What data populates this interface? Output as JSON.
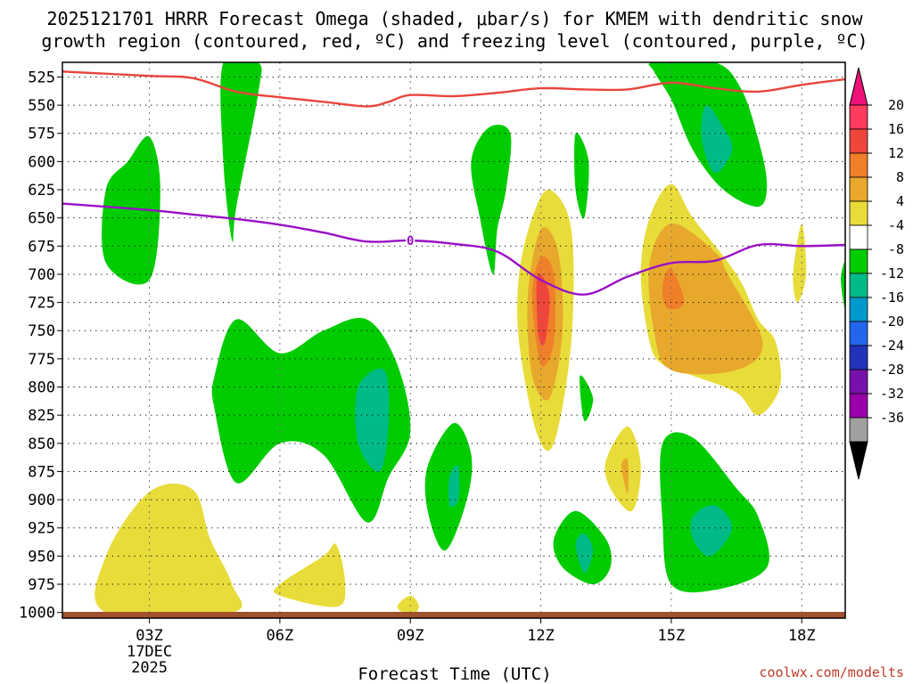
{
  "chart_data": {
    "type": "contour",
    "title_lines": [
      "2025121701 HRRR Forecast Omega (shaded, μbar/s) for KMEM with dendritic snow",
      "growth region (contoured, red, ºC) and freezing level (contoured, purple, ºC)"
    ],
    "xlabel": "Forecast Time (UTC)",
    "credit": "coolwx.com/modelts",
    "x_ticks": [
      {
        "hour": 3,
        "label": "03Z",
        "sub": [
          "17DEC",
          "2025"
        ]
      },
      {
        "hour": 6,
        "label": "06Z"
      },
      {
        "hour": 9,
        "label": "09Z"
      },
      {
        "hour": 12,
        "label": "12Z"
      },
      {
        "hour": 15,
        "label": "15Z"
      },
      {
        "hour": 18,
        "label": "18Z"
      }
    ],
    "xlim": [
      1,
      19
    ],
    "pressure_levels": [
      525,
      550,
      575,
      600,
      625,
      650,
      675,
      700,
      725,
      750,
      775,
      800,
      825,
      850,
      875,
      900,
      925,
      950,
      975,
      1000
    ],
    "ylim": [
      512,
      1005
    ],
    "colorbar": {
      "labels": [
        "20",
        "16",
        "12",
        "8",
        "4",
        "-4",
        "-8",
        "-12",
        "-16",
        "-20",
        "-24",
        "-28",
        "-32",
        "-36"
      ],
      "colors": [
        "#ff3b5e",
        "#f0453b",
        "#f07f2a",
        "#e8a82c",
        "#e8dc3a",
        "#ffffff",
        "#00cc00",
        "#00bb88",
        "#0099cc",
        "#2266ee",
        "#2233bb",
        "#7711aa",
        "#9900aa",
        "#a0a0a0"
      ],
      "top_color": "#ee1177",
      "bottom_color": "#000000"
    },
    "series": [
      {
        "name": "dendritic snow growth region (-12 C)",
        "color": "#e8453c",
        "points": [
          [
            0.9,
            520
          ],
          [
            3.0,
            524
          ],
          [
            4.0,
            526
          ],
          [
            5.0,
            538
          ],
          [
            6.0,
            543
          ],
          [
            7.0,
            547
          ],
          [
            8.0,
            551
          ],
          [
            8.5,
            547
          ],
          [
            9.0,
            541
          ],
          [
            10.0,
            542
          ],
          [
            11.0,
            539
          ],
          [
            12.0,
            535
          ],
          [
            13.0,
            536
          ],
          [
            14.0,
            536
          ],
          [
            15.0,
            530
          ],
          [
            16.0,
            535
          ],
          [
            17.0,
            538
          ],
          [
            18.0,
            532
          ],
          [
            19.0,
            527
          ]
        ]
      },
      {
        "name": "freezing level (0 C)",
        "color": "#9a10c6",
        "label": "0",
        "points": [
          [
            0.9,
            637
          ],
          [
            3.0,
            643
          ],
          [
            4.0,
            647
          ],
          [
            5.0,
            651
          ],
          [
            6.0,
            656
          ],
          [
            7.0,
            663
          ],
          [
            8.0,
            671
          ],
          [
            9.0,
            670
          ],
          [
            10.0,
            673
          ],
          [
            11.0,
            680
          ],
          [
            12.0,
            705
          ],
          [
            13.0,
            718
          ],
          [
            14.0,
            702
          ],
          [
            15.0,
            690
          ],
          [
            16.0,
            688
          ],
          [
            17.0,
            674
          ],
          [
            18.0,
            675
          ],
          [
            19.0,
            674
          ]
        ]
      }
    ],
    "omega_regions": [
      {
        "level": "-4",
        "color": "#00cc00",
        "points": [
          [
            2.0,
            625
          ],
          [
            2.5,
            600
          ],
          [
            3.0,
            578
          ],
          [
            3.25,
            625
          ],
          [
            3.0,
            705
          ],
          [
            2.0,
            690
          ]
        ]
      },
      {
        "level": "-4",
        "color": "#00cc00",
        "points": [
          [
            4.7,
            512
          ],
          [
            5.5,
            512
          ],
          [
            5.5,
            540
          ],
          [
            5.0,
            640
          ],
          [
            4.9,
            670
          ],
          [
            4.7,
            600
          ]
        ]
      },
      {
        "level": "-4",
        "color": "#00cc00",
        "points": [
          [
            4.5,
            790
          ],
          [
            5.0,
            740
          ],
          [
            6.0,
            770
          ],
          [
            7.0,
            750
          ],
          [
            8.0,
            740
          ],
          [
            8.7,
            780
          ],
          [
            9.0,
            840
          ],
          [
            8.5,
            880
          ],
          [
            8.0,
            920
          ],
          [
            7.0,
            860
          ],
          [
            6.0,
            850
          ],
          [
            5.0,
            885
          ],
          [
            4.5,
            820
          ]
        ]
      },
      {
        "level": "-8",
        "color": "#00bb88",
        "points": [
          [
            7.8,
            800
          ],
          [
            8.4,
            785
          ],
          [
            8.5,
            830
          ],
          [
            8.3,
            875
          ],
          [
            7.8,
            850
          ]
        ]
      },
      {
        "level": "-4",
        "color": "#00cc00",
        "points": [
          [
            9.4,
            870
          ],
          [
            10.0,
            832
          ],
          [
            10.4,
            860
          ],
          [
            10.3,
            900
          ],
          [
            9.8,
            945
          ],
          [
            9.4,
            910
          ]
        ]
      },
      {
        "level": "-8",
        "color": "#00bb88",
        "points": [
          [
            9.9,
            880
          ],
          [
            10.1,
            870
          ],
          [
            10.1,
            900
          ],
          [
            9.9,
            905
          ]
        ]
      },
      {
        "level": "-4",
        "color": "#00cc00",
        "points": [
          [
            10.4,
            600
          ],
          [
            10.8,
            570
          ],
          [
            11.3,
            575
          ],
          [
            11.2,
            625
          ],
          [
            11.0,
            660
          ],
          [
            10.9,
            700
          ],
          [
            10.6,
            650
          ]
        ]
      },
      {
        "level": "-4",
        "color": "#00cc00",
        "points": [
          [
            12.8,
            575
          ],
          [
            13.1,
            600
          ],
          [
            13.0,
            650
          ],
          [
            12.8,
            625
          ]
        ]
      },
      {
        "level": "-4",
        "color": "#00cc00",
        "points": [
          [
            12.9,
            790
          ],
          [
            13.2,
            810
          ],
          [
            13.0,
            830
          ]
        ]
      },
      {
        "level": "-4",
        "color": "#00cc00",
        "points": [
          [
            12.3,
            935
          ],
          [
            12.8,
            910
          ],
          [
            13.5,
            935
          ],
          [
            13.6,
            960
          ],
          [
            13.2,
            975
          ],
          [
            12.5,
            960
          ]
        ]
      },
      {
        "level": "-8",
        "color": "#00bb88",
        "points": [
          [
            12.8,
            940
          ],
          [
            13.0,
            930
          ],
          [
            13.2,
            945
          ],
          [
            13.0,
            965
          ]
        ]
      },
      {
        "level": "-4",
        "color": "#00cc00",
        "points": [
          [
            14.6,
            512
          ],
          [
            16.0,
            512
          ],
          [
            16.6,
            535
          ],
          [
            17.0,
            580
          ],
          [
            17.2,
            620
          ],
          [
            17.0,
            640
          ],
          [
            16.2,
            625
          ],
          [
            15.5,
            590
          ],
          [
            15.0,
            545
          ],
          [
            14.6,
            520
          ]
        ]
      },
      {
        "level": "-8",
        "color": "#00bb88",
        "points": [
          [
            15.8,
            550
          ],
          [
            16.2,
            570
          ],
          [
            16.4,
            590
          ],
          [
            16.0,
            610
          ],
          [
            15.7,
            580
          ]
        ]
      },
      {
        "level": "-4",
        "color": "#00cc00",
        "points": [
          [
            14.8,
            850
          ],
          [
            15.5,
            845
          ],
          [
            16.5,
            890
          ],
          [
            17.0,
            915
          ],
          [
            17.2,
            960
          ],
          [
            16.0,
            980
          ],
          [
            15.0,
            975
          ],
          [
            14.8,
            920
          ]
        ]
      },
      {
        "level": "-8",
        "color": "#00bb88",
        "points": [
          [
            15.5,
            915
          ],
          [
            16.0,
            905
          ],
          [
            16.4,
            925
          ],
          [
            15.9,
            950
          ],
          [
            15.5,
            935
          ]
        ]
      },
      {
        "level": "-4",
        "color": "#00cc00",
        "points": [
          [
            18.9,
            705
          ],
          [
            19.0,
            690
          ],
          [
            19.0,
            730
          ]
        ]
      },
      {
        "level": "4",
        "color": "#e8dc3a",
        "points": [
          [
            11.5,
            700
          ],
          [
            11.8,
            650
          ],
          [
            12.2,
            625
          ],
          [
            12.7,
            660
          ],
          [
            12.7,
            760
          ],
          [
            12.3,
            850
          ],
          [
            11.9,
            840
          ],
          [
            11.5,
            760
          ]
        ]
      },
      {
        "level": "8",
        "color": "#e8a82c",
        "points": [
          [
            11.7,
            720
          ],
          [
            12.0,
            660
          ],
          [
            12.4,
            680
          ],
          [
            12.5,
            750
          ],
          [
            12.2,
            810
          ],
          [
            11.8,
            790
          ]
        ]
      },
      {
        "level": "12",
        "color": "#f07f2a",
        "points": [
          [
            11.8,
            720
          ],
          [
            12.0,
            685
          ],
          [
            12.3,
            700
          ],
          [
            12.3,
            760
          ],
          [
            12.0,
            780
          ]
        ]
      },
      {
        "level": "16",
        "color": "#f0453b",
        "points": [
          [
            11.9,
            710
          ],
          [
            12.0,
            700
          ],
          [
            12.2,
            720
          ],
          [
            12.1,
            760
          ],
          [
            11.95,
            755
          ]
        ]
      },
      {
        "level": "4",
        "color": "#e8dc3a",
        "points": [
          [
            14.3,
            700
          ],
          [
            14.5,
            650
          ],
          [
            15.0,
            620
          ],
          [
            15.5,
            650
          ],
          [
            16.5,
            700
          ],
          [
            17.0,
            740
          ],
          [
            17.4,
            760
          ],
          [
            17.5,
            800
          ],
          [
            17.0,
            825
          ],
          [
            16.5,
            805
          ],
          [
            15.5,
            790
          ],
          [
            14.8,
            780
          ],
          [
            14.5,
            760
          ]
        ]
      },
      {
        "level": "8",
        "color": "#e8a82c",
        "points": [
          [
            14.5,
            690
          ],
          [
            15.0,
            655
          ],
          [
            16.0,
            680
          ],
          [
            16.3,
            700
          ],
          [
            17.1,
            760
          ],
          [
            16.5,
            785
          ],
          [
            15.0,
            785
          ],
          [
            14.6,
            750
          ]
        ]
      },
      {
        "level": "12",
        "color": "#f07f2a",
        "points": [
          [
            14.8,
            710
          ],
          [
            15.0,
            695
          ],
          [
            15.3,
            725
          ],
          [
            14.9,
            730
          ]
        ]
      },
      {
        "level": "4",
        "color": "#e8dc3a",
        "points": [
          [
            13.5,
            865
          ],
          [
            14.0,
            835
          ],
          [
            14.3,
            870
          ],
          [
            14.1,
            910
          ],
          [
            13.6,
            890
          ]
        ]
      },
      {
        "level": "8",
        "color": "#e8a82c",
        "points": [
          [
            13.85,
            870
          ],
          [
            14.0,
            865
          ],
          [
            14.0,
            895
          ]
        ]
      },
      {
        "level": "4",
        "color": "#e8dc3a",
        "points": [
          [
            17.8,
            700
          ],
          [
            18.0,
            655
          ],
          [
            18.1,
            700
          ],
          [
            17.9,
            725
          ]
        ]
      },
      {
        "level": "4",
        "color": "#e8dc3a",
        "points": [
          [
            2.0,
            950
          ],
          [
            3.0,
            893
          ],
          [
            4.0,
            891
          ],
          [
            4.4,
            935
          ],
          [
            4.9,
            975
          ],
          [
            4.9,
            1000
          ],
          [
            2.0,
            1000
          ]
        ]
      },
      {
        "level": "4",
        "color": "#e8dc3a",
        "points": [
          [
            6.0,
            975
          ],
          [
            7.0,
            950
          ],
          [
            7.3,
            940
          ],
          [
            7.5,
            975
          ],
          [
            7.3,
            995
          ],
          [
            6.0,
            985
          ]
        ]
      },
      {
        "level": "4",
        "color": "#e8dc3a",
        "points": [
          [
            8.7,
            995
          ],
          [
            9.0,
            985
          ],
          [
            9.2,
            995
          ],
          [
            9.0,
            1003
          ]
        ]
      }
    ],
    "surface_color": "#a0522d"
  }
}
